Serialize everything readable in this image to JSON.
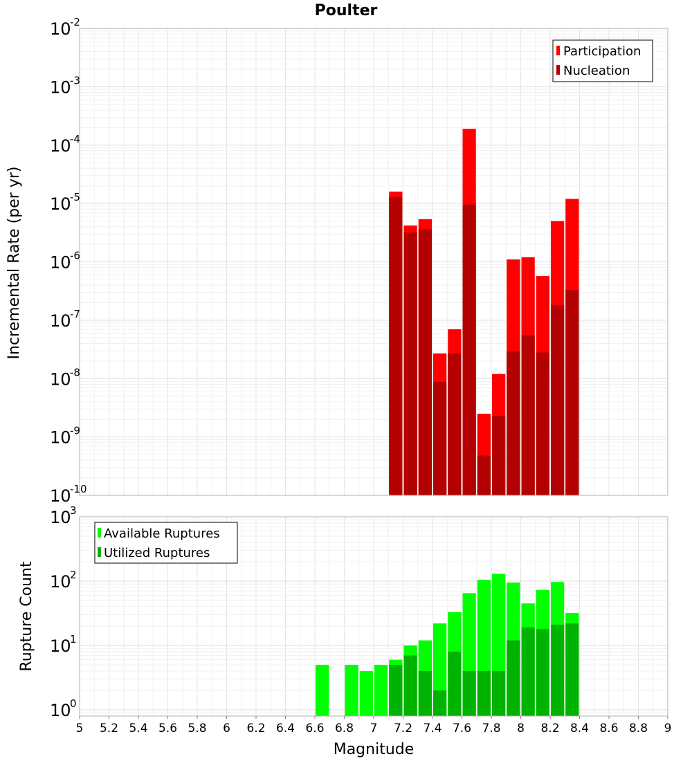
{
  "chart_data": [
    {
      "type": "bar",
      "title": "Poulter",
      "xlabel": "Magnitude",
      "ylabel": "Incremental Rate (per yr)",
      "yscale": "log",
      "xlim": [
        5,
        9
      ],
      "ylim": [
        1e-10,
        0.01
      ],
      "grid": true,
      "legend_position": "top-right",
      "yticks": [
        {
          "base": "10",
          "exp": "-10",
          "value": 1e-10
        },
        {
          "base": "10",
          "exp": "-9",
          "value": 1e-09
        },
        {
          "base": "10",
          "exp": "-8",
          "value": 1e-08
        },
        {
          "base": "10",
          "exp": "-7",
          "value": 1e-07
        },
        {
          "base": "10",
          "exp": "-6",
          "value": 1e-06
        },
        {
          "base": "10",
          "exp": "-5",
          "value": 1e-05
        },
        {
          "base": "10",
          "exp": "-4",
          "value": 0.0001
        },
        {
          "base": "10",
          "exp": "-3",
          "value": 0.001
        },
        {
          "base": "10",
          "exp": "-2",
          "value": 0.01
        }
      ],
      "x": [
        7.15,
        7.25,
        7.35,
        7.45,
        7.55,
        7.65,
        7.75,
        7.85,
        7.95,
        8.05,
        8.15,
        8.25,
        8.35
      ],
      "series": [
        {
          "name": "Participation",
          "color": "#ff0000",
          "values": [
            1.6e-05,
            4.2e-06,
            5.4e-06,
            2.7e-08,
            7e-08,
            0.00019,
            2.5e-09,
            1.2e-08,
            1.1e-06,
            1.2e-06,
            5.7e-07,
            5e-06,
            1.2e-05
          ]
        },
        {
          "name": "Nucleation",
          "color": "#b30000",
          "values": [
            1.3e-05,
            3.2e-06,
            3.6e-06,
            8.8e-09,
            2.7e-08,
            9.6e-06,
            4.8e-10,
            2.3e-09,
            2.9e-08,
            5.5e-08,
            2.8e-08,
            1.8e-07,
            3.3e-07
          ]
        }
      ]
    },
    {
      "type": "bar",
      "xlabel": "Magnitude",
      "ylabel": "Rupture Count",
      "yscale": "log",
      "xlim": [
        5,
        9
      ],
      "ylim": [
        0.8,
        1000
      ],
      "grid": true,
      "legend_position": "top-left",
      "xticks": [
        "5",
        "5.2",
        "5.4",
        "5.6",
        "5.8",
        "6",
        "6.2",
        "6.4",
        "6.6",
        "6.8",
        "7",
        "7.2",
        "7.4",
        "7.6",
        "7.8",
        "8",
        "8.2",
        "8.4",
        "8.6",
        "8.8",
        "9"
      ],
      "yticks": [
        {
          "base": "10",
          "exp": "0",
          "value": 1
        },
        {
          "base": "10",
          "exp": "1",
          "value": 10
        },
        {
          "base": "10",
          "exp": "2",
          "value": 100
        },
        {
          "base": "10",
          "exp": "3",
          "value": 1000
        }
      ],
      "x": [
        6.65,
        6.75,
        6.85,
        6.95,
        7.05,
        7.15,
        7.25,
        7.35,
        7.45,
        7.55,
        7.65,
        7.75,
        7.85,
        7.95,
        8.05,
        8.15,
        8.25,
        8.35
      ],
      "series": [
        {
          "name": "Available Ruptures",
          "color": "#00ff00",
          "values": [
            5,
            0,
            5,
            4,
            5,
            6,
            10,
            12,
            22,
            33,
            65,
            105,
            130,
            95,
            45,
            73,
            97,
            32
          ]
        },
        {
          "name": "Utilized Ruptures",
          "color": "#00b300",
          "values": [
            0,
            0,
            0,
            0,
            0,
            5,
            7,
            4,
            2,
            8,
            4,
            4,
            4,
            12,
            19,
            18,
            21,
            22
          ]
        }
      ]
    }
  ]
}
